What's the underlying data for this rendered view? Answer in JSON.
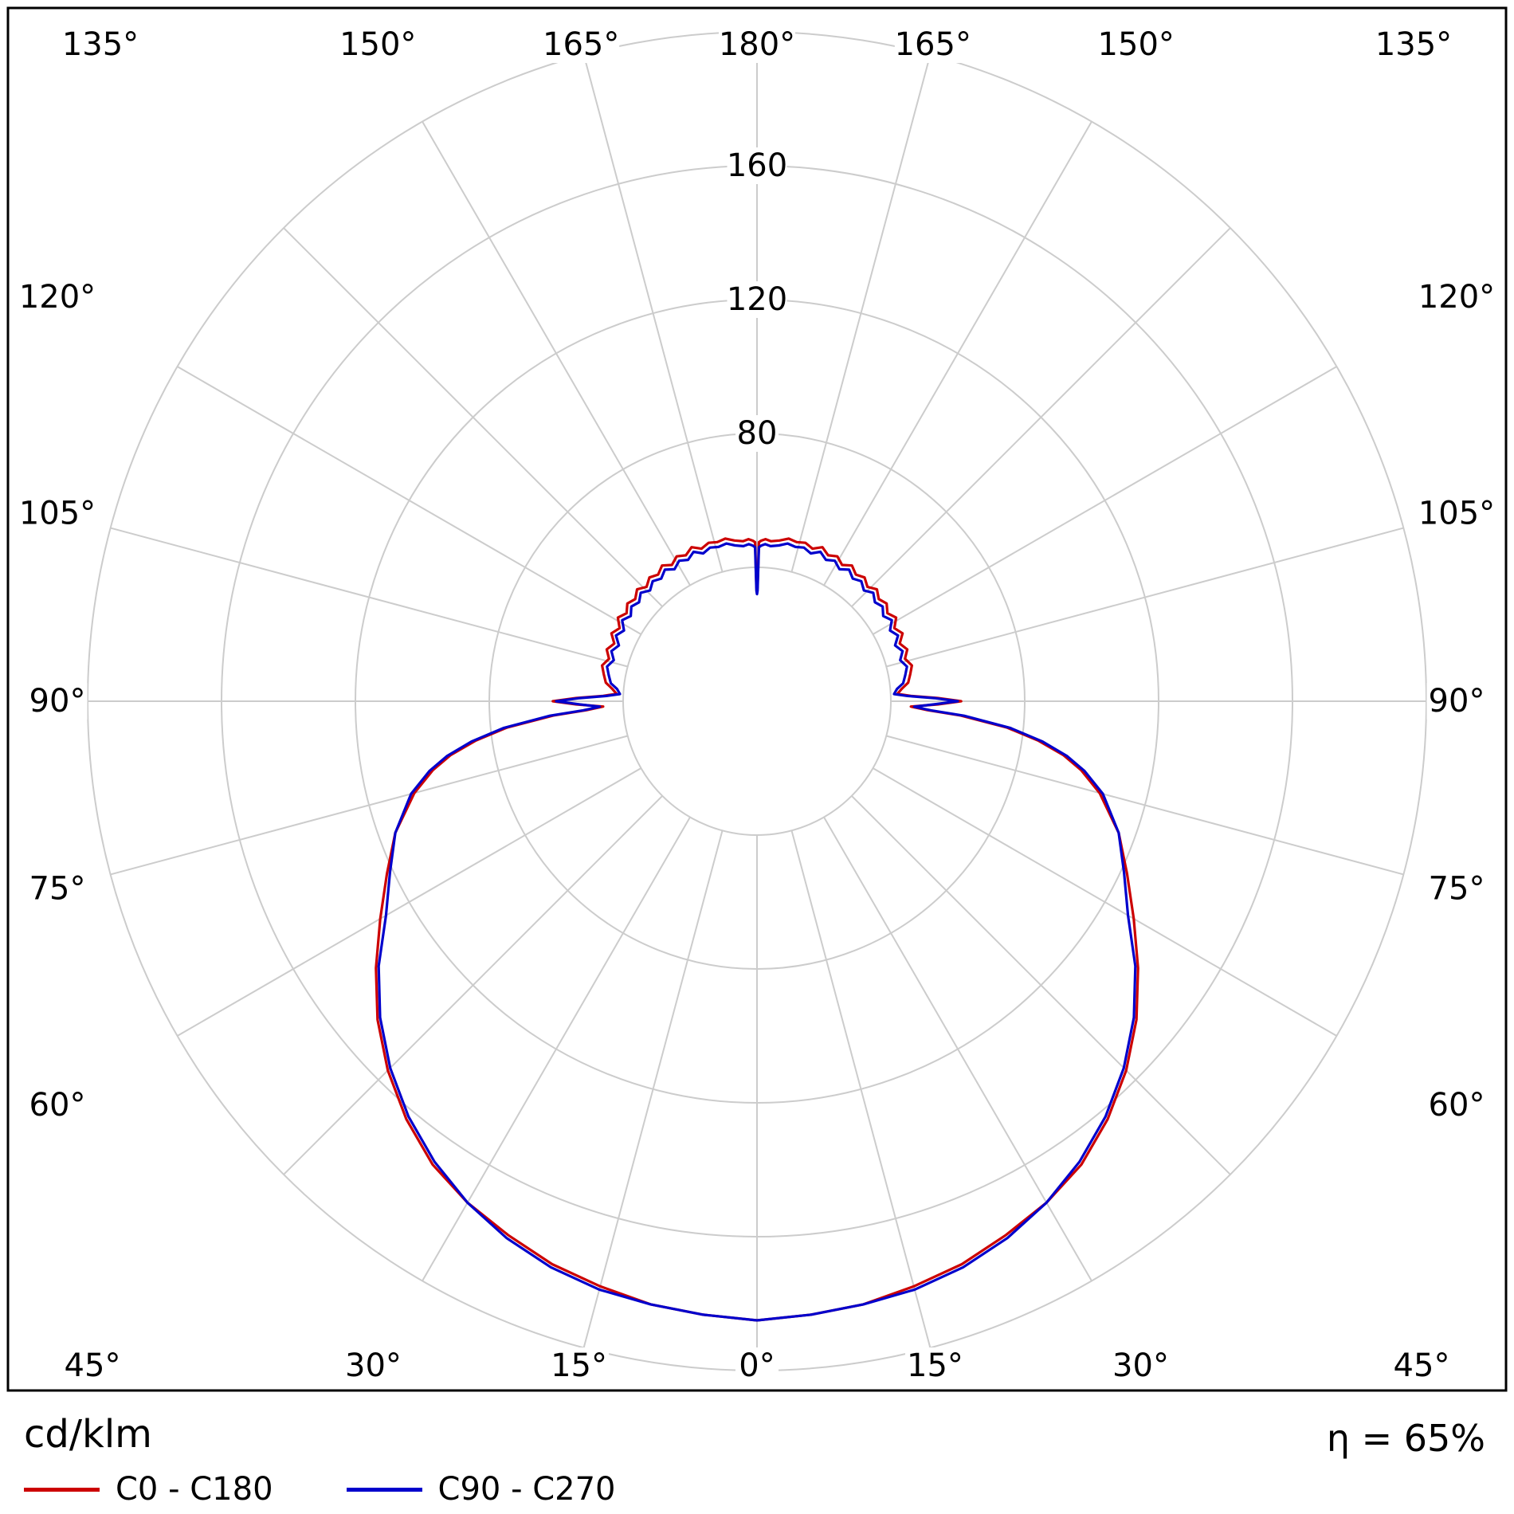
{
  "page": {
    "background": "#ffffff"
  },
  "footer": {
    "unit_label": "cd/klm",
    "efficiency_label": "η = 65%"
  },
  "chart_data": {
    "type": "polar",
    "title": "",
    "unit_label": "cd/klm",
    "efficiency_label": "η = 65%",
    "legend_position": "bottom-left",
    "grid": true,
    "grid_color": "#cccccc",
    "frame_color": "#000000",
    "angle_label_suffix": "°",
    "angle_ticks_deg": [
      0,
      15,
      30,
      45,
      60,
      75,
      90,
      105,
      120,
      135,
      150,
      165,
      180
    ],
    "radial_ticks": [
      40,
      80,
      120,
      160,
      200
    ],
    "radial_tick_labels": [
      "80",
      "120",
      "160"
    ],
    "rmax": 200,
    "legend": [
      {
        "label": "C0 - C180",
        "color": "#cc0000"
      },
      {
        "label": "C90 - C270",
        "color": "#0000cc"
      }
    ],
    "series": [
      {
        "name": "C0 - C180",
        "color": "#cc0000",
        "gamma": [
          0,
          5,
          10,
          15,
          20,
          25,
          30,
          35,
          40,
          45,
          50,
          55,
          60,
          65,
          70,
          75,
          78,
          80,
          82,
          84,
          86,
          87,
          88,
          89,
          90,
          91,
          92,
          93,
          95,
          97,
          100,
          103,
          106,
          109,
          112,
          115,
          118,
          121,
          124,
          127,
          130,
          133,
          136,
          139,
          142,
          145,
          148,
          151,
          154,
          157,
          160,
          163,
          166,
          169,
          172,
          175,
          177,
          178.5,
          179.3,
          179.7,
          180
        ],
        "values": [
          185,
          184,
          183,
          181,
          179,
          176,
          173,
          169,
          163,
          156,
          148,
          139,
          130,
          122,
          115,
          106,
          99,
          93,
          85,
          75,
          61,
          51,
          46,
          54,
          61,
          54,
          46,
          42,
          43.5,
          45.5,
          46.5,
          47.5,
          46,
          47.5,
          46,
          48,
          46.5,
          48.5,
          47,
          48.5,
          47.5,
          49,
          47.5,
          49,
          48,
          49.5,
          48,
          49.5,
          48.5,
          50,
          48.5,
          49.5,
          49,
          49.5,
          48.5,
          48,
          48.5,
          48,
          47.5,
          34,
          33
        ]
      },
      {
        "name": "C90 - C270",
        "color": "#0000cc",
        "gamma": [
          0,
          5,
          10,
          15,
          20,
          25,
          30,
          35,
          40,
          45,
          50,
          55,
          60,
          65,
          70,
          75,
          78,
          80,
          82,
          84,
          86,
          87,
          88,
          89,
          90,
          91,
          92,
          93,
          95,
          97,
          100,
          103,
          106,
          109,
          112,
          115,
          118,
          121,
          124,
          127,
          130,
          133,
          136,
          139,
          142,
          145,
          148,
          151,
          154,
          157,
          160,
          163,
          166,
          169,
          172,
          175,
          177,
          178.5,
          179.3,
          179.7,
          180
        ],
        "values": [
          185,
          184,
          183,
          182,
          180,
          177,
          173,
          168,
          162,
          155,
          147,
          138,
          128,
          121,
          115,
          107,
          100,
          94,
          86,
          76,
          62,
          52,
          47,
          53,
          60,
          53,
          45,
          41,
          42,
          44,
          45,
          46,
          44.5,
          46,
          44.5,
          46.5,
          45,
          47,
          45.5,
          47,
          46,
          47.5,
          46,
          47.5,
          46.5,
          48,
          46.5,
          48,
          47,
          48.5,
          47,
          48,
          47.5,
          48,
          47,
          46.5,
          47,
          46.5,
          46,
          33,
          32
        ]
      }
    ]
  }
}
